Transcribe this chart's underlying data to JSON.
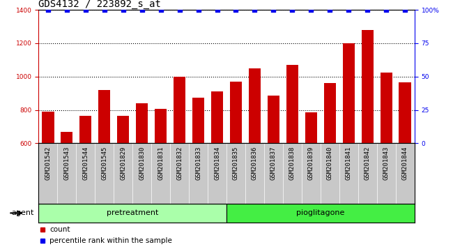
{
  "title": "GDS4132 / 223892_s_at",
  "samples": [
    "GSM201542",
    "GSM201543",
    "GSM201544",
    "GSM201545",
    "GSM201829",
    "GSM201830",
    "GSM201831",
    "GSM201832",
    "GSM201833",
    "GSM201834",
    "GSM201835",
    "GSM201836",
    "GSM201837",
    "GSM201838",
    "GSM201839",
    "GSM201840",
    "GSM201841",
    "GSM201842",
    "GSM201843",
    "GSM201844"
  ],
  "bar_values": [
    790,
    670,
    765,
    920,
    765,
    840,
    808,
    1000,
    875,
    910,
    970,
    1050,
    885,
    1070,
    785,
    960,
    1200,
    1280,
    1025,
    965
  ],
  "percentile_values": [
    100,
    100,
    100,
    100,
    100,
    100,
    100,
    100,
    100,
    100,
    100,
    100,
    100,
    100,
    100,
    100,
    100,
    100,
    100,
    100
  ],
  "bar_color": "#cc0000",
  "percentile_color": "#0000ee",
  "bar_bottom": 600,
  "ylim_left": [
    600,
    1400
  ],
  "ylim_right": [
    0,
    100
  ],
  "yticks_left": [
    600,
    800,
    1000,
    1200,
    1400
  ],
  "yticks_right": [
    0,
    25,
    50,
    75,
    100
  ],
  "ytick_labels_right": [
    "0",
    "25",
    "50",
    "75",
    "100%"
  ],
  "groups": [
    {
      "label": "pretreatment",
      "start": 0,
      "end": 10,
      "color": "#aaffaa"
    },
    {
      "label": "pioglitagone",
      "start": 10,
      "end": 20,
      "color": "#44ee44"
    }
  ],
  "agent_label": "agent",
  "legend_count_label": "count",
  "legend_pct_label": "percentile rank within the sample",
  "tick_bg_color": "#c8c8c8",
  "plot_bg_color": "#ffffff",
  "title_fontsize": 10,
  "tick_fontsize": 6.5,
  "group_fontsize": 8,
  "legend_fontsize": 7.5
}
